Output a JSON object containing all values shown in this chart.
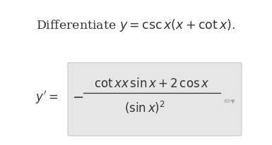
{
  "background_color": "#ffffff",
  "box_facecolor": "#e6e6e6",
  "box_edgecolor": "#c8c8c8",
  "title_text": "Differentiate $\\mathit{y} = \\mathrm{csc}\\, x(x + \\mathrm{cot}\\, x).$",
  "lhs_text": "$\\mathit{y}' =$",
  "neg_sign": "$-$",
  "numerator_text": "$\\mathrm{cot}\\, x x\\, \\mathrm{sin}\\, x + 2\\, \\mathrm{cos}\\, x$",
  "denominator_text": "$(\\mathrm{sin}\\, x)^{2}$",
  "title_fontsize": 12.5,
  "math_fontsize": 12,
  "text_color": "#333333"
}
